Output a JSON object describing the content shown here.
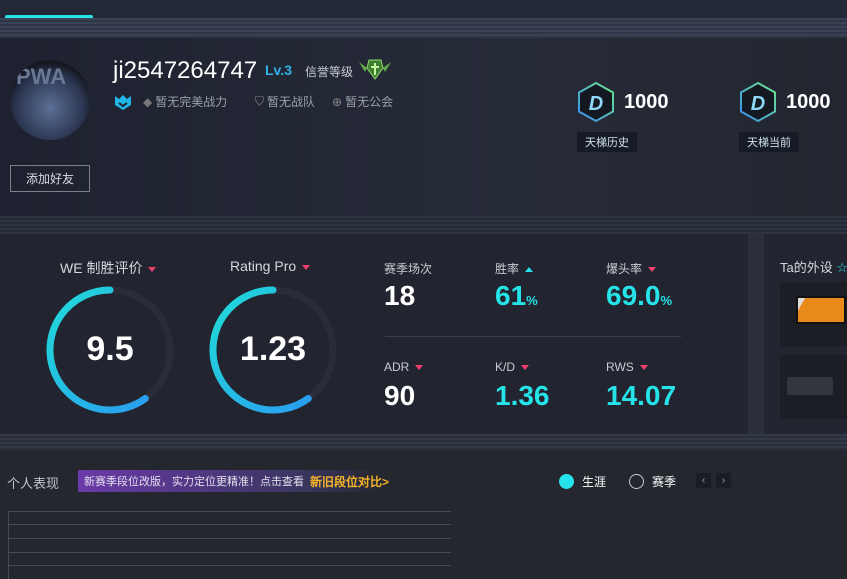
{
  "profile": {
    "avatar_text": "PWA",
    "username": "ji2547264747",
    "level": "Lv.3",
    "reputation_label": "信誉等级",
    "power": "暂无完美战力",
    "team": "暂无战队",
    "guild": "暂无公会",
    "add_friend": "添加好友"
  },
  "ladder": [
    {
      "value": "1000",
      "label": "天梯历史",
      "badge": "D"
    },
    {
      "value": "1000",
      "label": "天梯当前",
      "badge": "D"
    }
  ],
  "gauges": [
    {
      "label": "WE 制胜评价",
      "value": "9.5",
      "fill": 0.6
    },
    {
      "label": "Rating Pro",
      "value": "1.23",
      "fill": 0.6
    }
  ],
  "stats": [
    {
      "label": "赛季场次",
      "value": "18",
      "unit": "",
      "trend": "none"
    },
    {
      "label": "胜率",
      "value": "61",
      "unit": "%",
      "trend": "up"
    },
    {
      "label": "爆头率",
      "value": "69.0",
      "unit": "%",
      "trend": "down"
    },
    {
      "label": "ADR",
      "value": "90",
      "unit": "",
      "trend": "down"
    },
    {
      "label": "K/D",
      "value": "1.36",
      "unit": "",
      "trend": "down"
    },
    {
      "label": "RWS",
      "value": "14.07",
      "unit": "",
      "trend": "down"
    }
  ],
  "devices": {
    "title": "Ta的外设"
  },
  "performance": {
    "title": "个人表现",
    "banner_text": "新赛季段位改版，实力定位更精准！点击查看",
    "banner_link": "新旧段位对比>",
    "radio_career": "生涯",
    "radio_season": "赛季",
    "selected": "生涯",
    "prev": "‹",
    "next": "›"
  },
  "colors": {
    "accent": "#25e3e8",
    "down": "#f0406e",
    "link": "#f5b32a",
    "level": "#2fb3e9"
  }
}
